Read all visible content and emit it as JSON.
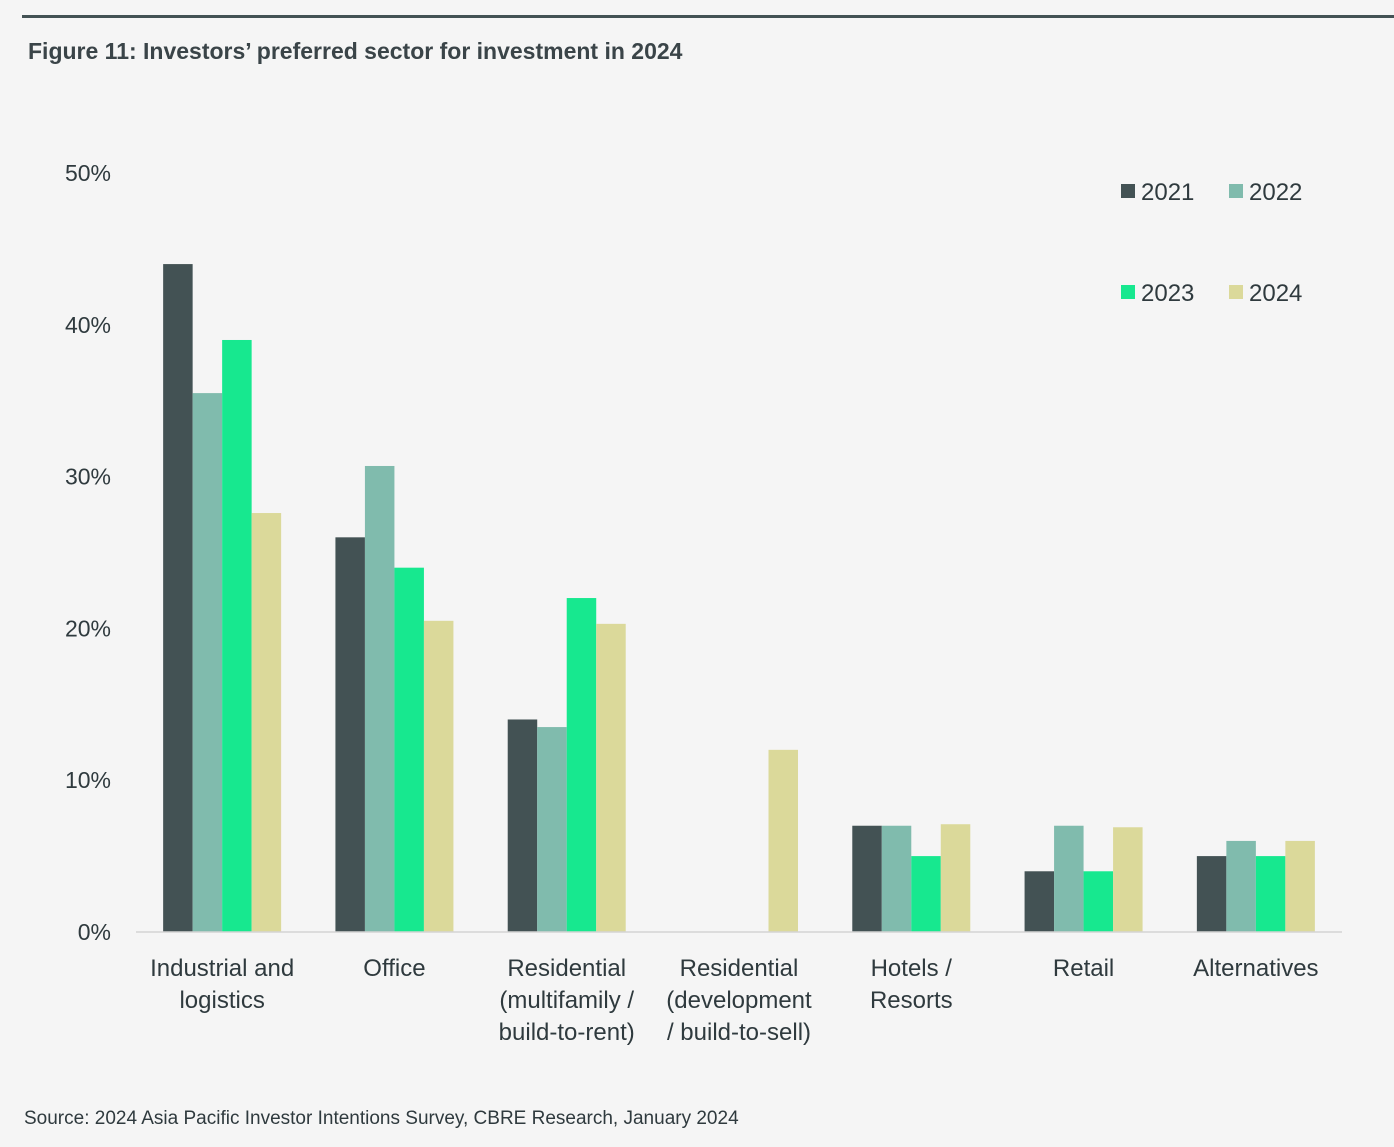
{
  "figure": {
    "title": "Figure 11:  Investors’ preferred sector for investment in 2024",
    "source": "Source: 2024 Asia Pacific Investor Intentions Survey, CBRE Research, January 2024"
  },
  "chart_data": {
    "type": "bar",
    "title": "Figure 11:  Investors’ preferred sector for investment in 2024",
    "xlabel": "",
    "ylabel": "",
    "ylim": [
      0,
      50
    ],
    "yticks": [
      0,
      10,
      20,
      30,
      40,
      50
    ],
    "ytick_labels": [
      "0%",
      "10%",
      "20%",
      "30%",
      "40%",
      "50%"
    ],
    "grid": false,
    "legend_position": "top-right",
    "categories": [
      "Industrial and logistics",
      "Office",
      "Residential (multifamily / build-to-rent)",
      "Residential (development / build-to-sell)",
      "Hotels / Resorts",
      "Retail",
      "Alternatives"
    ],
    "category_lines": [
      [
        "Industrial and",
        "logistics"
      ],
      [
        "Office"
      ],
      [
        "Residential",
        "(multifamily /",
        "build-to-rent)"
      ],
      [
        "Residential",
        "(development",
        "/ build-to-sell)"
      ],
      [
        "Hotels /",
        "Resorts"
      ],
      [
        "Retail"
      ],
      [
        "Alternatives"
      ]
    ],
    "series": [
      {
        "name": "2021",
        "color": "#435254",
        "values": [
          44,
          26,
          14,
          null,
          7,
          4,
          5
        ]
      },
      {
        "name": "2022",
        "color": "#80bbad",
        "values": [
          35.5,
          30.7,
          13.5,
          null,
          7,
          7,
          6
        ]
      },
      {
        "name": "2023",
        "color": "#17e88f",
        "values": [
          39,
          24,
          22,
          null,
          5,
          4,
          5
        ]
      },
      {
        "name": "2024",
        "color": "#dbd99a",
        "values": [
          27.6,
          20.5,
          20.3,
          12,
          7.1,
          6.9,
          6
        ]
      }
    ]
  }
}
